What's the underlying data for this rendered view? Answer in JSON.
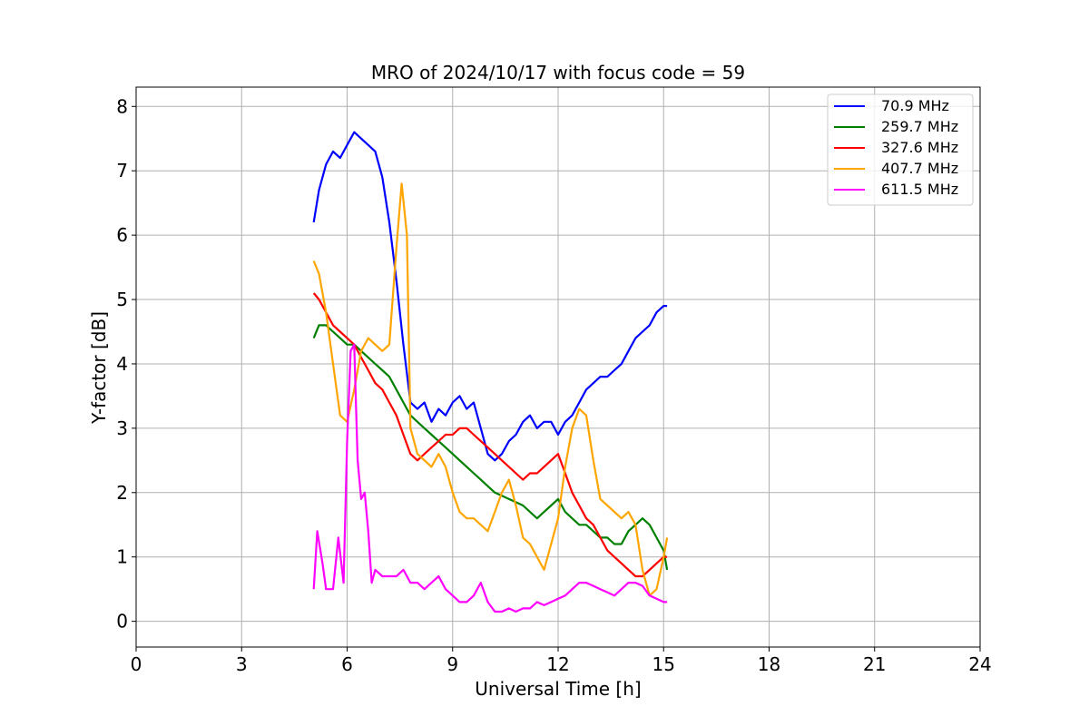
{
  "chart_data": {
    "type": "line",
    "title": "MRO of 2024/10/17 with focus code = 59",
    "xlabel": "Universal Time [h]",
    "ylabel": "Y-factor [dB]",
    "xlim": [
      0,
      24
    ],
    "ylim": [
      -0.4,
      8.3
    ],
    "xticks": [
      0,
      3,
      6,
      9,
      12,
      15,
      18,
      21,
      24
    ],
    "yticks": [
      0,
      1,
      2,
      3,
      4,
      5,
      6,
      7,
      8
    ],
    "grid": true,
    "legend_position": "top-right",
    "series": [
      {
        "name": " 70.9 MHz",
        "color": "#0000ff",
        "x": [
          5.05,
          5.2,
          5.4,
          5.6,
          5.8,
          6.0,
          6.2,
          6.4,
          6.6,
          6.8,
          7.0,
          7.2,
          7.4,
          7.6,
          7.8,
          8.0,
          8.2,
          8.4,
          8.6,
          8.8,
          9.0,
          9.2,
          9.4,
          9.6,
          9.8,
          10.0,
          10.2,
          10.4,
          10.6,
          10.8,
          11.0,
          11.2,
          11.4,
          11.6,
          11.8,
          12.0,
          12.2,
          12.4,
          12.6,
          12.8,
          13.0,
          13.2,
          13.4,
          13.6,
          13.8,
          14.0,
          14.2,
          14.4,
          14.6,
          14.8,
          15.0,
          15.1
        ],
        "y": [
          6.2,
          6.7,
          7.1,
          7.3,
          7.2,
          7.4,
          7.6,
          7.5,
          7.4,
          7.3,
          6.9,
          6.2,
          5.3,
          4.3,
          3.4,
          3.3,
          3.4,
          3.1,
          3.3,
          3.2,
          3.4,
          3.5,
          3.3,
          3.4,
          3.0,
          2.6,
          2.5,
          2.6,
          2.8,
          2.9,
          3.1,
          3.2,
          3.0,
          3.1,
          3.1,
          2.9,
          3.1,
          3.2,
          3.4,
          3.6,
          3.7,
          3.8,
          3.8,
          3.9,
          4.0,
          4.2,
          4.4,
          4.5,
          4.6,
          4.8,
          4.9,
          4.9
        ]
      },
      {
        "name": "259.7 MHz",
        "color": "#008000",
        "x": [
          5.05,
          5.2,
          5.4,
          5.6,
          5.8,
          6.0,
          6.2,
          6.4,
          6.6,
          6.8,
          7.0,
          7.2,
          7.4,
          7.6,
          7.8,
          8.0,
          8.2,
          8.4,
          8.6,
          8.8,
          9.0,
          9.2,
          9.4,
          9.6,
          9.8,
          10.0,
          10.2,
          10.4,
          10.6,
          10.8,
          11.0,
          11.2,
          11.4,
          11.6,
          11.8,
          12.0,
          12.2,
          12.4,
          12.6,
          12.8,
          13.0,
          13.2,
          13.4,
          13.6,
          13.8,
          14.0,
          14.2,
          14.4,
          14.6,
          14.8,
          15.0,
          15.1
        ],
        "y": [
          4.4,
          4.6,
          4.6,
          4.5,
          4.4,
          4.3,
          4.3,
          4.2,
          4.1,
          4.0,
          3.9,
          3.8,
          3.6,
          3.4,
          3.2,
          3.1,
          3.0,
          2.9,
          2.8,
          2.7,
          2.6,
          2.5,
          2.4,
          2.3,
          2.2,
          2.1,
          2.0,
          1.95,
          1.9,
          1.85,
          1.8,
          1.7,
          1.6,
          1.7,
          1.8,
          1.9,
          1.7,
          1.6,
          1.5,
          1.5,
          1.4,
          1.3,
          1.3,
          1.2,
          1.2,
          1.4,
          1.5,
          1.6,
          1.5,
          1.3,
          1.1,
          0.8
        ]
      },
      {
        "name": "327.6 MHz",
        "color": "#ff0000",
        "x": [
          5.05,
          5.2,
          5.4,
          5.6,
          5.8,
          6.0,
          6.2,
          6.4,
          6.6,
          6.8,
          7.0,
          7.2,
          7.4,
          7.6,
          7.8,
          8.0,
          8.2,
          8.4,
          8.6,
          8.8,
          9.0,
          9.2,
          9.4,
          9.6,
          9.8,
          10.0,
          10.2,
          10.4,
          10.6,
          10.8,
          11.0,
          11.2,
          11.4,
          11.6,
          11.8,
          12.0,
          12.2,
          12.4,
          12.6,
          12.8,
          13.0,
          13.2,
          13.4,
          13.6,
          13.8,
          14.0,
          14.2,
          14.4,
          14.6,
          14.8,
          15.0,
          15.1
        ],
        "y": [
          5.1,
          5.0,
          4.8,
          4.6,
          4.5,
          4.4,
          4.3,
          4.1,
          3.9,
          3.7,
          3.6,
          3.4,
          3.2,
          2.9,
          2.6,
          2.5,
          2.6,
          2.7,
          2.8,
          2.9,
          2.9,
          3.0,
          3.0,
          2.9,
          2.8,
          2.7,
          2.6,
          2.5,
          2.4,
          2.3,
          2.2,
          2.3,
          2.3,
          2.4,
          2.5,
          2.6,
          2.3,
          2.0,
          1.8,
          1.6,
          1.5,
          1.3,
          1.1,
          1.0,
          0.9,
          0.8,
          0.7,
          0.7,
          0.8,
          0.9,
          1.0,
          1.0
        ]
      },
      {
        "name": "407.7 MHz",
        "color": "#ffa500",
        "x": [
          5.05,
          5.2,
          5.4,
          5.6,
          5.8,
          6.0,
          6.2,
          6.4,
          6.6,
          6.8,
          7.0,
          7.2,
          7.4,
          7.55,
          7.7,
          7.8,
          8.0,
          8.2,
          8.4,
          8.6,
          8.8,
          9.0,
          9.2,
          9.4,
          9.6,
          9.8,
          10.0,
          10.2,
          10.4,
          10.6,
          10.8,
          11.0,
          11.2,
          11.4,
          11.6,
          11.8,
          12.0,
          12.2,
          12.4,
          12.6,
          12.8,
          13.0,
          13.2,
          13.4,
          13.6,
          13.8,
          14.0,
          14.2,
          14.4,
          14.6,
          14.8,
          15.0,
          15.1
        ],
        "y": [
          5.6,
          5.4,
          4.8,
          4.0,
          3.2,
          3.1,
          3.6,
          4.2,
          4.4,
          4.3,
          4.2,
          4.3,
          5.8,
          6.8,
          6.0,
          3.0,
          2.6,
          2.5,
          2.4,
          2.6,
          2.4,
          2.0,
          1.7,
          1.6,
          1.6,
          1.5,
          1.4,
          1.7,
          2.0,
          2.2,
          1.8,
          1.3,
          1.2,
          1.0,
          0.8,
          1.2,
          1.6,
          2.4,
          3.0,
          3.3,
          3.2,
          2.5,
          1.9,
          1.8,
          1.7,
          1.6,
          1.7,
          1.5,
          0.8,
          0.4,
          0.5,
          1.0,
          1.3
        ]
      },
      {
        "name": "611.5 MHz",
        "color": "#ff00ff",
        "x": [
          5.05,
          5.15,
          5.3,
          5.4,
          5.6,
          5.75,
          5.9,
          6.0,
          6.1,
          6.2,
          6.3,
          6.4,
          6.5,
          6.6,
          6.7,
          6.8,
          7.0,
          7.2,
          7.4,
          7.6,
          7.8,
          8.0,
          8.2,
          8.4,
          8.6,
          8.8,
          9.0,
          9.2,
          9.4,
          9.6,
          9.8,
          10.0,
          10.2,
          10.4,
          10.6,
          10.8,
          11.0,
          11.2,
          11.4,
          11.6,
          11.8,
          12.0,
          12.2,
          12.4,
          12.6,
          12.8,
          13.0,
          13.2,
          13.4,
          13.6,
          13.8,
          14.0,
          14.2,
          14.4,
          14.6,
          14.8,
          15.0,
          15.1
        ],
        "y": [
          0.5,
          1.4,
          0.9,
          0.5,
          0.5,
          1.3,
          0.6,
          2.8,
          4.2,
          4.3,
          2.5,
          1.9,
          2.0,
          1.4,
          0.6,
          0.8,
          0.7,
          0.7,
          0.7,
          0.8,
          0.6,
          0.6,
          0.5,
          0.6,
          0.7,
          0.5,
          0.4,
          0.3,
          0.3,
          0.4,
          0.6,
          0.3,
          0.15,
          0.15,
          0.2,
          0.15,
          0.2,
          0.2,
          0.3,
          0.25,
          0.3,
          0.35,
          0.4,
          0.5,
          0.6,
          0.6,
          0.55,
          0.5,
          0.45,
          0.4,
          0.5,
          0.6,
          0.6,
          0.55,
          0.4,
          0.35,
          0.3,
          0.3
        ]
      }
    ]
  }
}
